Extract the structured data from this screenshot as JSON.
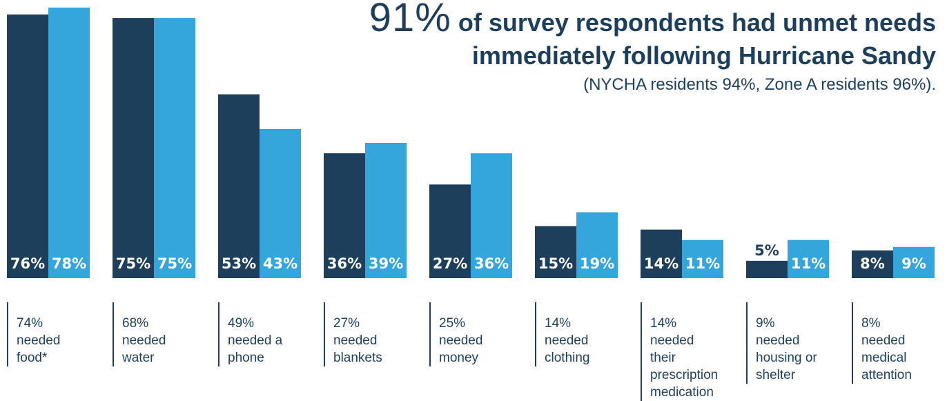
{
  "headline": {
    "percent": "91%",
    "line1": "of survey respondents had unmet needs",
    "line2": "immediately following Hurricane Sandy",
    "sub": "(NYCHA residents 94%, Zone A residents 96%)."
  },
  "colors": {
    "series_a": "#1d3f5c",
    "series_b": "#35a6dc",
    "text": "#1d3f5c"
  },
  "chart_data": {
    "type": "bar",
    "ylim": [
      0,
      80
    ],
    "categories": [
      [
        "74%",
        "needed",
        "food*"
      ],
      [
        "68%",
        "needed",
        "water"
      ],
      [
        "49%",
        "needed a",
        "phone"
      ],
      [
        "27%",
        "needed",
        "blankets"
      ],
      [
        "25%",
        "needed",
        "money"
      ],
      [
        "14%",
        "needed",
        "clothing"
      ],
      [
        "14%",
        "needed",
        "their",
        "prescription",
        "medication"
      ],
      [
        "9%",
        "needed",
        "housing or",
        "shelter"
      ],
      [
        "8%",
        "needed",
        "medical",
        "attention"
      ]
    ],
    "series": [
      {
        "values": [
          76,
          75,
          53,
          36,
          27,
          15,
          14,
          5,
          8
        ]
      },
      {
        "values": [
          78,
          75,
          43,
          39,
          36,
          19,
          11,
          11,
          9
        ]
      }
    ]
  }
}
